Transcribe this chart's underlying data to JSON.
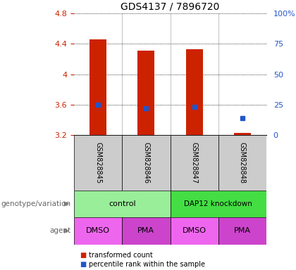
{
  "title": "GDS4137 / 7896720",
  "samples": [
    "GSM828845",
    "GSM828846",
    "GSM828847",
    "GSM828848"
  ],
  "bar_bottoms": [
    3.2,
    3.2,
    3.2,
    3.2
  ],
  "bar_tops": [
    4.46,
    4.31,
    4.33,
    3.23
  ],
  "percentile_values": [
    3.6,
    3.55,
    3.57,
    3.42
  ],
  "ylim_left": [
    3.2,
    4.8
  ],
  "ylim_right": [
    0,
    100
  ],
  "yticks_left": [
    3.2,
    3.6,
    4.0,
    4.4,
    4.8
  ],
  "yticks_right": [
    0,
    25,
    50,
    75,
    100
  ],
  "ytick_labels_left": [
    "3.2",
    "3.6",
    "4",
    "4.4",
    "4.8"
  ],
  "ytick_labels_right": [
    "0",
    "25",
    "50",
    "75",
    "100%"
  ],
  "bar_color": "#cc2200",
  "percentile_color": "#2255cc",
  "bg_color": "#ffffff",
  "sample_area_color": "#cccccc",
  "control_color": "#99ee99",
  "dap12_color": "#44dd44",
  "dmso_color": "#ee66ee",
  "pma_color": "#cc44cc",
  "agent_labels": [
    "DMSO",
    "PMA",
    "DMSO",
    "PMA"
  ],
  "legend_items": [
    {
      "label": "transformed count",
      "color": "#cc2200"
    },
    {
      "label": "percentile rank within the sample",
      "color": "#2255cc"
    }
  ],
  "title_fontsize": 10,
  "tick_fontsize": 8,
  "label_fontsize": 8,
  "sample_fontsize": 7
}
